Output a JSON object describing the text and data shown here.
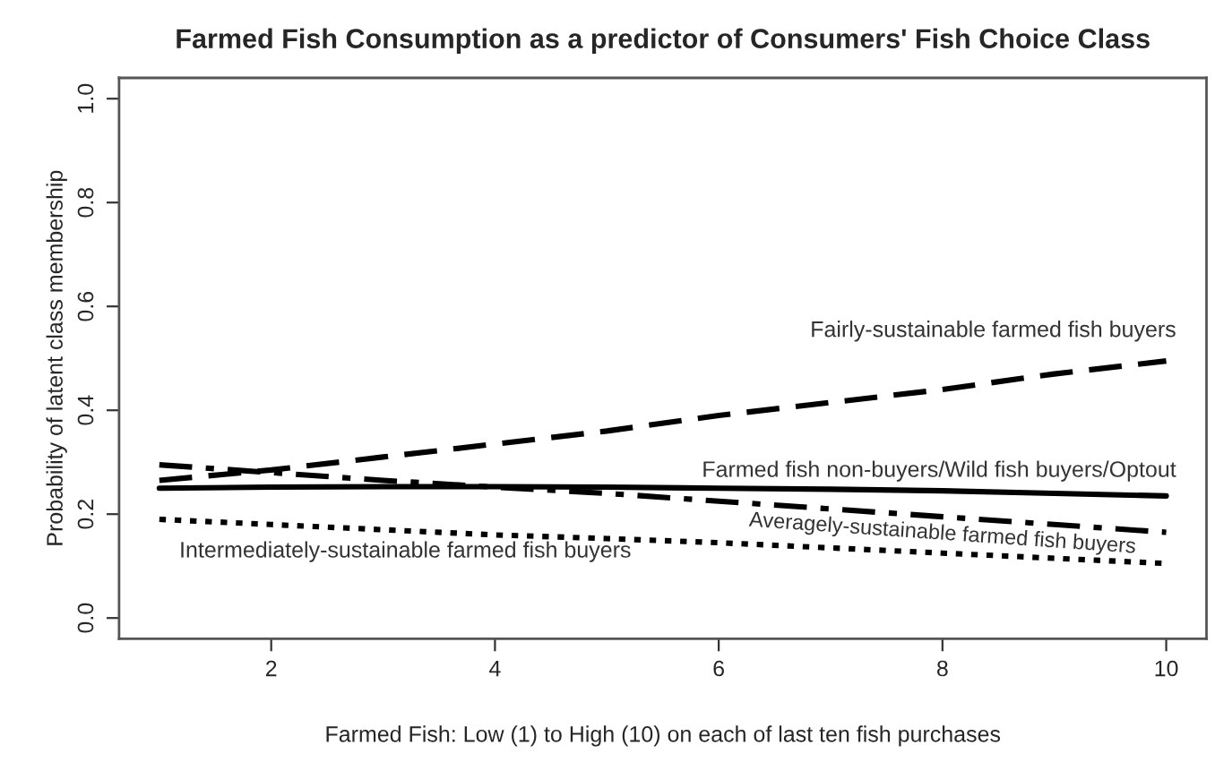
{
  "chart_data": {
    "type": "line",
    "title": "Farmed Fish Consumption as a predictor of Consumers' Fish Choice Class",
    "xlabel": "Farmed Fish: Low (1) to High (10) on each of last ten fish purchases",
    "ylabel": "Probability of latent class membership",
    "x": [
      1,
      2,
      3,
      4,
      5,
      6,
      7,
      8,
      9,
      10
    ],
    "series": [
      {
        "name": "Fairly-sustainable farmed fish buyers",
        "color": "#000000",
        "line_style": "dashed",
        "values": [
          0.265,
          0.285,
          0.31,
          0.335,
          0.36,
          0.39,
          0.415,
          0.44,
          0.47,
          0.495
        ]
      },
      {
        "name": "Farmed fish non-buyers/Wild fish buyers/Optout",
        "color": "#000000",
        "line_style": "solid",
        "values": [
          0.25,
          0.252,
          0.253,
          0.253,
          0.252,
          0.25,
          0.248,
          0.245,
          0.24,
          0.235
        ]
      },
      {
        "name": "Averagely-sustainable farmed fish buyers",
        "color": "#000000",
        "line_style": "dashdot",
        "values": [
          0.295,
          0.28,
          0.265,
          0.252,
          0.24,
          0.225,
          0.21,
          0.195,
          0.18,
          0.165
        ]
      },
      {
        "name": "Intermediately-sustainable farmed fish buyers",
        "color": "#000000",
        "line_style": "dotted",
        "values": [
          0.19,
          0.18,
          0.17,
          0.16,
          0.153,
          0.145,
          0.135,
          0.125,
          0.115,
          0.105
        ]
      }
    ],
    "xlim": [
      0.64,
      10.36
    ],
    "ylim": [
      -0.04,
      1.04
    ],
    "xticks": [
      2,
      4,
      6,
      8,
      10
    ],
    "yticks": [
      {
        "value": 0,
        "label": "0.0"
      },
      0.2,
      0.4,
      0.6,
      0.8,
      {
        "value": 1,
        "label": "1.0"
      }
    ],
    "grid": false,
    "legend": false
  }
}
